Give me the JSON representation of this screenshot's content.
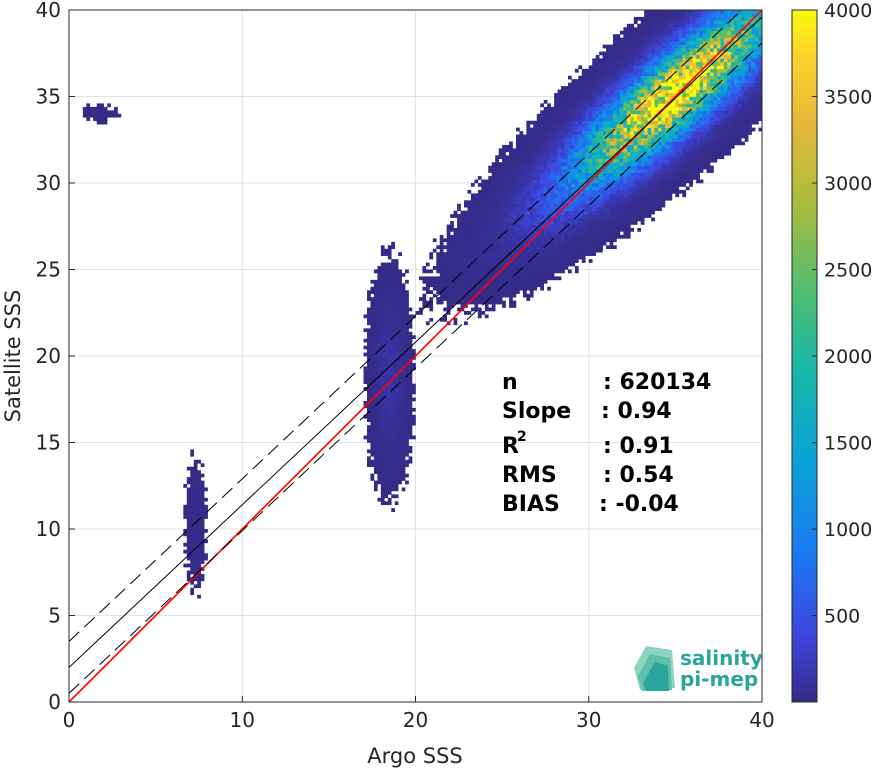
{
  "chart_data": {
    "type": "heatmap",
    "title": "",
    "xlabel": "Argo SSS",
    "ylabel": "Satellite SSS",
    "xlim": [
      0,
      40
    ],
    "ylim": [
      0,
      40
    ],
    "xticks": [
      0,
      10,
      20,
      30,
      40
    ],
    "yticks": [
      0,
      5,
      10,
      15,
      20,
      25,
      30,
      35,
      40
    ],
    "grid": true,
    "colorbar": {
      "colormap": "parula",
      "range": [
        1,
        4000
      ],
      "ticks": [
        500,
        1000,
        1500,
        2000,
        2500,
        3000,
        3500,
        4000
      ]
    },
    "density_clusters": [
      {
        "x_center": 35,
        "y_center": 35.2,
        "x_spread": 2.8,
        "y_spread": 2.5,
        "peak_count": 4000
      },
      {
        "x_center": 18.5,
        "y_center": 18.8,
        "x_spread": 0.5,
        "y_spread": 2.5,
        "peak_count": 150
      },
      {
        "x_center": 7.3,
        "y_center": 10.3,
        "x_spread": 0.3,
        "y_spread": 1.8,
        "peak_count": 20
      },
      {
        "x_center": 1.7,
        "y_center": 34.1,
        "x_spread": 0.6,
        "y_spread": 0.3,
        "peak_count": 10
      }
    ],
    "lines": [
      {
        "kind": "identity",
        "slope": 1.0,
        "intercept": 0.0,
        "color": "#ff0000",
        "style": "solid"
      },
      {
        "kind": "regression",
        "slope": 0.94,
        "intercept": 2.0,
        "color": "#000000",
        "style": "solid"
      },
      {
        "kind": "regression-upper",
        "slope": 0.94,
        "intercept": 3.5,
        "color": "#000000",
        "style": "dashed"
      },
      {
        "kind": "regression-lower",
        "slope": 0.94,
        "intercept": 0.5,
        "color": "#000000",
        "style": "dashed"
      }
    ],
    "stats": [
      {
        "label": "n",
        "sup": "",
        "value": ": 620134"
      },
      {
        "label": "Slope",
        "sup": "",
        "value": ": 0.94"
      },
      {
        "label": "R",
        "sup": "2",
        "value": ": 0.91"
      },
      {
        "label": "RMS",
        "sup": "",
        "value": ": 0.54"
      },
      {
        "label": "BIAS",
        "sup": "",
        "value": ": -0.04"
      }
    ]
  },
  "logo": {
    "line1": "salinity",
    "line2": "pi-mep",
    "color": "#2aa59a"
  }
}
